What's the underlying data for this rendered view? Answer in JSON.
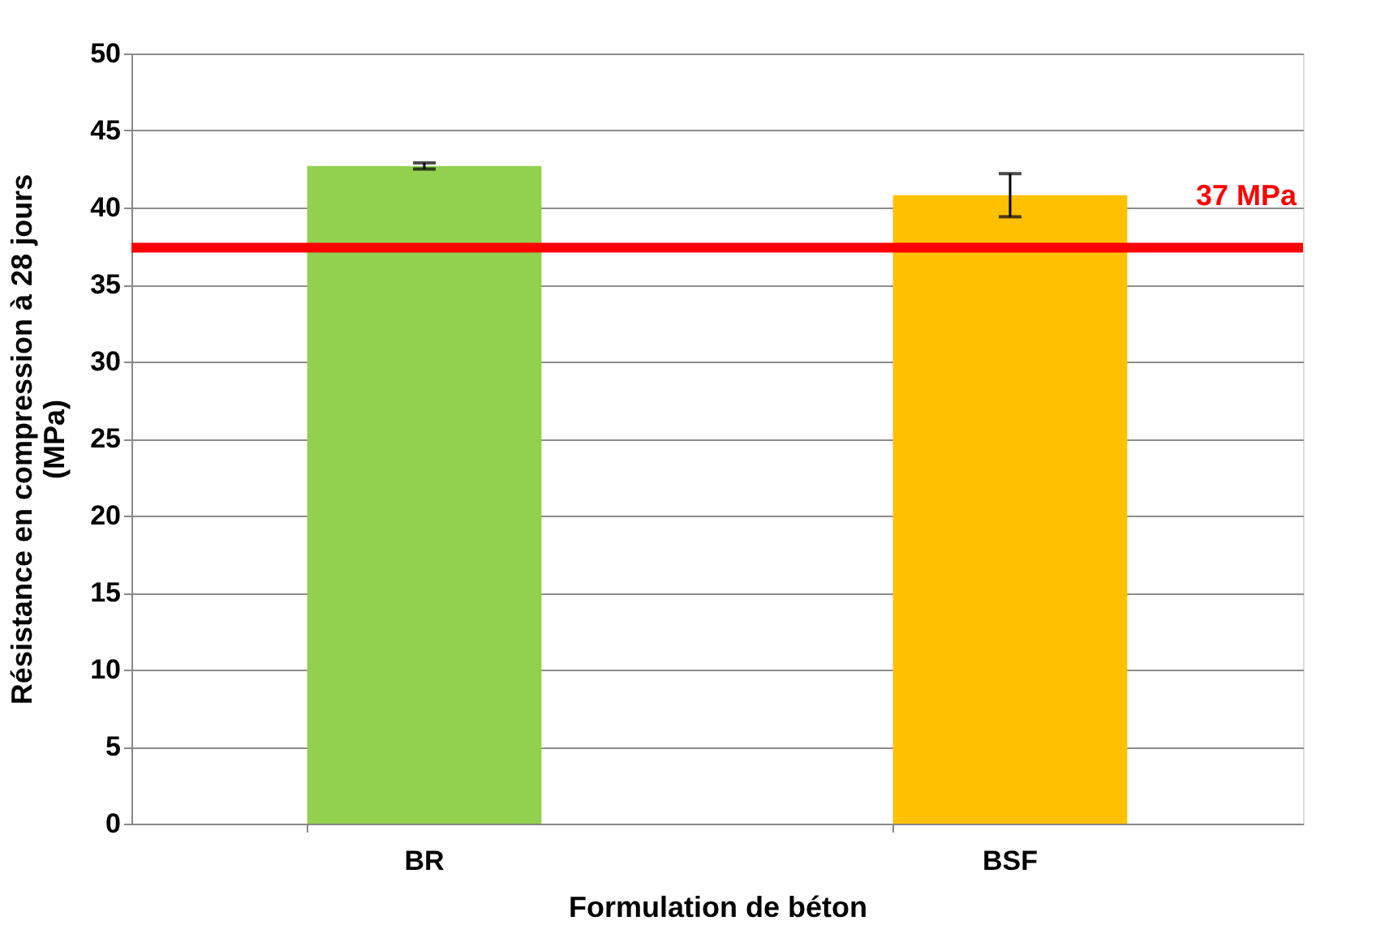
{
  "chart_data": {
    "type": "bar",
    "xlabel": "Formulation de béton",
    "ylabel": "Résistance en compression à 28 jours\n(MPa)",
    "categories": [
      "BR",
      "BSF"
    ],
    "values": [
      42.7,
      40.8
    ],
    "colors": [
      "#92d050",
      "#ffc000"
    ],
    "errors": [
      0.2,
      1.4
    ],
    "ylim": [
      0,
      50
    ],
    "yticks": [
      0,
      5,
      10,
      15,
      20,
      25,
      30,
      35,
      40,
      45,
      50
    ],
    "grid": "y",
    "ref_lines": [
      {
        "axis": "y",
        "value": 37.4,
        "label": "37 MPa",
        "color": "#ff0000"
      }
    ]
  }
}
